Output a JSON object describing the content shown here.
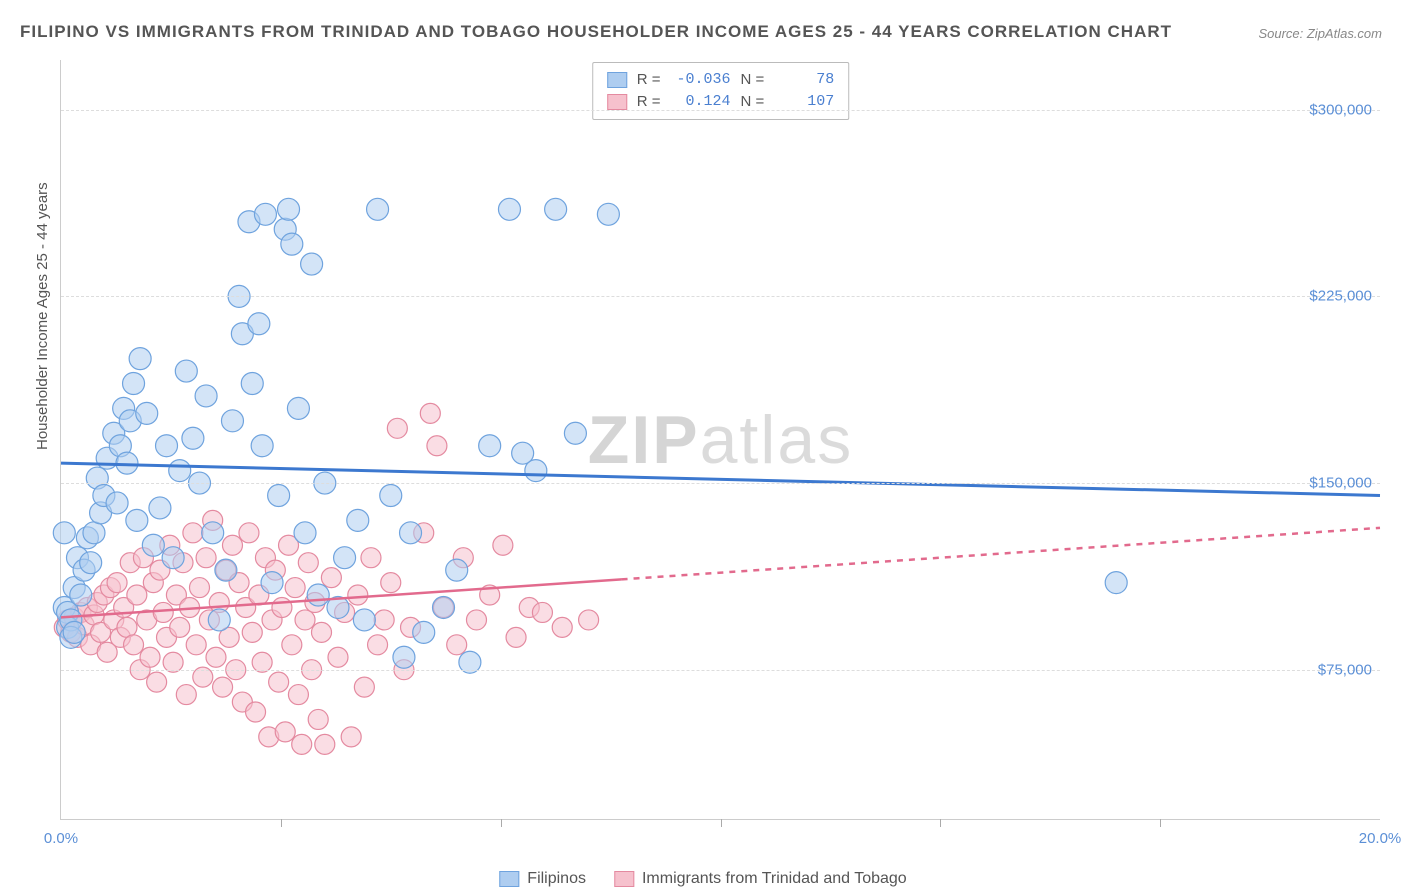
{
  "title": "FILIPINO VS IMMIGRANTS FROM TRINIDAD AND TOBAGO HOUSEHOLDER INCOME AGES 25 - 44 YEARS CORRELATION CHART",
  "source_prefix": "Source: ",
  "source_link": "ZipAtlas.com",
  "ylabel": "Householder Income Ages 25 - 44 years",
  "watermark": {
    "part1": "ZIP",
    "part2": "atlas"
  },
  "chart": {
    "type": "scatter",
    "xlim": [
      0,
      20
    ],
    "ylim": [
      15000,
      320000
    ],
    "x_ticks": [
      0,
      20
    ],
    "x_tick_labels": [
      "0.0%",
      "20.0%"
    ],
    "x_minor_ticks": [
      3.33,
      6.67,
      10,
      13.33,
      16.67
    ],
    "y_ticks": [
      75000,
      150000,
      225000,
      300000
    ],
    "y_tick_labels": [
      "$75,000",
      "$150,000",
      "$225,000",
      "$300,000"
    ],
    "grid_color": "#dddddd",
    "axis_color": "#cccccc",
    "background": "#ffffff",
    "tick_font_color": "#5b8fd6",
    "tick_font_size": 15,
    "label_font_color": "#555555",
    "title_font_color": "#555555",
    "title_font_size": 17,
    "series": [
      {
        "name": "Filipinos",
        "fill": "#aecdf0",
        "stroke": "#6fa3de",
        "fill_opacity": 0.55,
        "stroke_width": 1.2,
        "marker_radius_px": 11,
        "R": "-0.036",
        "N": "78",
        "trend": {
          "x1": 0,
          "y1": 158000,
          "x2": 20,
          "y2": 145000,
          "solid_to_x": 20,
          "color": "#3c78cf",
          "width": 3
        },
        "points": [
          [
            0.05,
            100000
          ],
          [
            0.1,
            98000
          ],
          [
            0.1,
            92000
          ],
          [
            0.15,
            95000
          ],
          [
            0.15,
            88000
          ],
          [
            0.2,
            108000
          ],
          [
            0.2,
            90000
          ],
          [
            0.25,
            120000
          ],
          [
            0.3,
            105000
          ],
          [
            0.35,
            115000
          ],
          [
            0.4,
            128000
          ],
          [
            0.45,
            118000
          ],
          [
            0.5,
            130000
          ],
          [
            0.55,
            152000
          ],
          [
            0.6,
            138000
          ],
          [
            0.65,
            145000
          ],
          [
            0.7,
            160000
          ],
          [
            0.8,
            170000
          ],
          [
            0.85,
            142000
          ],
          [
            0.9,
            165000
          ],
          [
            0.95,
            180000
          ],
          [
            1.0,
            158000
          ],
          [
            1.05,
            175000
          ],
          [
            1.1,
            190000
          ],
          [
            1.15,
            135000
          ],
          [
            1.2,
            200000
          ],
          [
            1.3,
            178000
          ],
          [
            1.4,
            125000
          ],
          [
            1.5,
            140000
          ],
          [
            1.6,
            165000
          ],
          [
            1.7,
            120000
          ],
          [
            1.8,
            155000
          ],
          [
            1.9,
            195000
          ],
          [
            2.0,
            168000
          ],
          [
            2.1,
            150000
          ],
          [
            2.2,
            185000
          ],
          [
            2.3,
            130000
          ],
          [
            2.4,
            95000
          ],
          [
            2.5,
            115000
          ],
          [
            2.6,
            175000
          ],
          [
            2.7,
            225000
          ],
          [
            2.75,
            210000
          ],
          [
            2.85,
            255000
          ],
          [
            2.9,
            190000
          ],
          [
            3.0,
            214000
          ],
          [
            3.05,
            165000
          ],
          [
            3.1,
            258000
          ],
          [
            3.2,
            110000
          ],
          [
            3.3,
            145000
          ],
          [
            3.4,
            252000
          ],
          [
            3.45,
            260000
          ],
          [
            3.5,
            246000
          ],
          [
            3.6,
            180000
          ],
          [
            3.7,
            130000
          ],
          [
            3.8,
            238000
          ],
          [
            3.9,
            105000
          ],
          [
            4.0,
            150000
          ],
          [
            4.2,
            100000
          ],
          [
            4.3,
            120000
          ],
          [
            4.5,
            135000
          ],
          [
            4.6,
            95000
          ],
          [
            4.8,
            260000
          ],
          [
            5.0,
            145000
          ],
          [
            5.2,
            80000
          ],
          [
            5.3,
            130000
          ],
          [
            5.5,
            90000
          ],
          [
            5.8,
            100000
          ],
          [
            6.0,
            115000
          ],
          [
            6.2,
            78000
          ],
          [
            6.5,
            165000
          ],
          [
            6.8,
            260000
          ],
          [
            7.0,
            162000
          ],
          [
            7.2,
            155000
          ],
          [
            7.5,
            260000
          ],
          [
            7.8,
            170000
          ],
          [
            8.3,
            258000
          ],
          [
            16.0,
            110000
          ],
          [
            0.05,
            130000
          ]
        ]
      },
      {
        "name": "Immigrants from Trinidad and Tobago",
        "fill": "#f6c1cd",
        "stroke": "#e48aa0",
        "fill_opacity": 0.55,
        "stroke_width": 1.2,
        "marker_radius_px": 10,
        "R": "0.124",
        "N": "107",
        "trend": {
          "x1": 0,
          "y1": 96000,
          "x2": 20,
          "y2": 132000,
          "solid_to_x": 8.5,
          "color": "#e26a8d",
          "width": 2.5
        },
        "points": [
          [
            0.05,
            92000
          ],
          [
            0.1,
            95000
          ],
          [
            0.15,
            90000
          ],
          [
            0.2,
            96000
          ],
          [
            0.25,
            88000
          ],
          [
            0.3,
            98000
          ],
          [
            0.35,
            93000
          ],
          [
            0.4,
            100000
          ],
          [
            0.45,
            85000
          ],
          [
            0.5,
            97000
          ],
          [
            0.55,
            102000
          ],
          [
            0.6,
            90000
          ],
          [
            0.65,
            105000
          ],
          [
            0.7,
            82000
          ],
          [
            0.75,
            108000
          ],
          [
            0.8,
            95000
          ],
          [
            0.85,
            110000
          ],
          [
            0.9,
            88000
          ],
          [
            0.95,
            100000
          ],
          [
            1.0,
            92000
          ],
          [
            1.05,
            118000
          ],
          [
            1.1,
            85000
          ],
          [
            1.15,
            105000
          ],
          [
            1.2,
            75000
          ],
          [
            1.25,
            120000
          ],
          [
            1.3,
            95000
          ],
          [
            1.35,
            80000
          ],
          [
            1.4,
            110000
          ],
          [
            1.45,
            70000
          ],
          [
            1.5,
            115000
          ],
          [
            1.55,
            98000
          ],
          [
            1.6,
            88000
          ],
          [
            1.65,
            125000
          ],
          [
            1.7,
            78000
          ],
          [
            1.75,
            105000
          ],
          [
            1.8,
            92000
          ],
          [
            1.85,
            118000
          ],
          [
            1.9,
            65000
          ],
          [
            1.95,
            100000
          ],
          [
            2.0,
            130000
          ],
          [
            2.05,
            85000
          ],
          [
            2.1,
            108000
          ],
          [
            2.15,
            72000
          ],
          [
            2.2,
            120000
          ],
          [
            2.25,
            95000
          ],
          [
            2.3,
            135000
          ],
          [
            2.35,
            80000
          ],
          [
            2.4,
            102000
          ],
          [
            2.45,
            68000
          ],
          [
            2.5,
            115000
          ],
          [
            2.55,
            88000
          ],
          [
            2.6,
            125000
          ],
          [
            2.65,
            75000
          ],
          [
            2.7,
            110000
          ],
          [
            2.75,
            62000
          ],
          [
            2.8,
            100000
          ],
          [
            2.85,
            130000
          ],
          [
            2.9,
            90000
          ],
          [
            2.95,
            58000
          ],
          [
            3.0,
            105000
          ],
          [
            3.05,
            78000
          ],
          [
            3.1,
            120000
          ],
          [
            3.15,
            48000
          ],
          [
            3.2,
            95000
          ],
          [
            3.25,
            115000
          ],
          [
            3.3,
            70000
          ],
          [
            3.35,
            100000
          ],
          [
            3.4,
            50000
          ],
          [
            3.45,
            125000
          ],
          [
            3.5,
            85000
          ],
          [
            3.55,
            108000
          ],
          [
            3.6,
            65000
          ],
          [
            3.65,
            45000
          ],
          [
            3.7,
            95000
          ],
          [
            3.75,
            118000
          ],
          [
            3.8,
            75000
          ],
          [
            3.85,
            102000
          ],
          [
            3.9,
            55000
          ],
          [
            3.95,
            90000
          ],
          [
            4.0,
            45000
          ],
          [
            4.1,
            112000
          ],
          [
            4.2,
            80000
          ],
          [
            4.3,
            98000
          ],
          [
            4.4,
            48000
          ],
          [
            4.5,
            105000
          ],
          [
            4.6,
            68000
          ],
          [
            4.7,
            120000
          ],
          [
            4.8,
            85000
          ],
          [
            4.9,
            95000
          ],
          [
            5.0,
            110000
          ],
          [
            5.1,
            172000
          ],
          [
            5.2,
            75000
          ],
          [
            5.3,
            92000
          ],
          [
            5.5,
            130000
          ],
          [
            5.6,
            178000
          ],
          [
            5.7,
            165000
          ],
          [
            5.8,
            100000
          ],
          [
            6.0,
            85000
          ],
          [
            6.1,
            120000
          ],
          [
            6.3,
            95000
          ],
          [
            6.5,
            105000
          ],
          [
            6.7,
            125000
          ],
          [
            6.9,
            88000
          ],
          [
            7.1,
            100000
          ],
          [
            7.3,
            98000
          ],
          [
            7.6,
            92000
          ],
          [
            8.0,
            95000
          ]
        ]
      }
    ]
  },
  "legend_top": {
    "r_label": "R =",
    "n_label": "N ="
  },
  "swatches": {
    "blue": {
      "fill": "#aecdf0",
      "stroke": "#6fa3de"
    },
    "pink": {
      "fill": "#f6c1cd",
      "stroke": "#e48aa0"
    }
  }
}
